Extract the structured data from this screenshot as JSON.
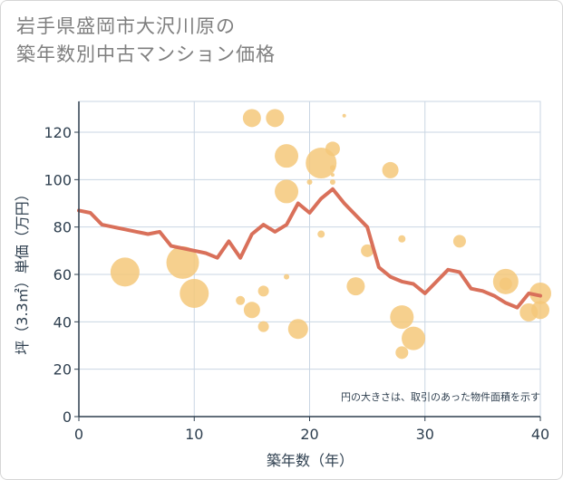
{
  "title_lines": [
    "岩手県盛岡市大沢川原の",
    "築年数別中古マンション価格"
  ],
  "colors": {
    "bubble": "#f5c87a",
    "line": "#d9705a",
    "grid": "#c9d6e3",
    "text": "#2e3f4f"
  },
  "chart_data": {
    "type": "scatter",
    "title": "岩手県盛岡市大沢川原の築年数別中古マンション価格",
    "xlabel": "築年数（年）",
    "ylabel": "坪（3.3㎡）単価（万円）",
    "xlim": [
      0,
      40
    ],
    "ylim": [
      0,
      133
    ],
    "xticks": [
      0,
      10,
      20,
      30,
      40
    ],
    "yticks": [
      0,
      20,
      40,
      60,
      80,
      100,
      120
    ],
    "grid": true,
    "note": "円の大きさは、取引のあった物件面積を示す",
    "bubbles": [
      {
        "x": 4,
        "y": 61,
        "size": 16
      },
      {
        "x": 9,
        "y": 65,
        "size": 18
      },
      {
        "x": 10,
        "y": 52,
        "size": 16
      },
      {
        "x": 14,
        "y": 49,
        "size": 5
      },
      {
        "x": 15,
        "y": 45,
        "size": 9
      },
      {
        "x": 15,
        "y": 126,
        "size": 10
      },
      {
        "x": 16,
        "y": 53,
        "size": 6
      },
      {
        "x": 16,
        "y": 38,
        "size": 6
      },
      {
        "x": 17,
        "y": 126,
        "size": 10
      },
      {
        "x": 18,
        "y": 110,
        "size": 13
      },
      {
        "x": 18,
        "y": 95,
        "size": 13
      },
      {
        "x": 18,
        "y": 59,
        "size": 3
      },
      {
        "x": 19,
        "y": 37,
        "size": 11
      },
      {
        "x": 20,
        "y": 99,
        "size": 3
      },
      {
        "x": 21,
        "y": 107,
        "size": 17
      },
      {
        "x": 21,
        "y": 77,
        "size": 4
      },
      {
        "x": 22,
        "y": 113,
        "size": 8
      },
      {
        "x": 22,
        "y": 105,
        "size": 3
      },
      {
        "x": 22,
        "y": 102,
        "size": 2
      },
      {
        "x": 22,
        "y": 99,
        "size": 3
      },
      {
        "x": 23,
        "y": 127,
        "size": 2
      },
      {
        "x": 24,
        "y": 55,
        "size": 10
      },
      {
        "x": 25,
        "y": 70,
        "size": 7
      },
      {
        "x": 27,
        "y": 104,
        "size": 9
      },
      {
        "x": 28,
        "y": 75,
        "size": 4
      },
      {
        "x": 28,
        "y": 42,
        "size": 13
      },
      {
        "x": 28,
        "y": 27,
        "size": 7
      },
      {
        "x": 29,
        "y": 33,
        "size": 13
      },
      {
        "x": 33,
        "y": 74,
        "size": 7
      },
      {
        "x": 37,
        "y": 57,
        "size": 14
      },
      {
        "x": 37,
        "y": 56,
        "size": 7
      },
      {
        "x": 39,
        "y": 44,
        "size": 10
      },
      {
        "x": 40,
        "y": 52,
        "size": 12
      },
      {
        "x": 40,
        "y": 45,
        "size": 10
      }
    ],
    "trend": {
      "x": [
        0,
        1,
        2,
        3,
        4,
        5,
        6,
        7,
        8,
        9,
        10,
        11,
        12,
        13,
        14,
        15,
        16,
        17,
        18,
        19,
        20,
        21,
        22,
        23,
        24,
        25,
        26,
        27,
        28,
        29,
        30,
        31,
        32,
        33,
        34,
        35,
        36,
        37,
        38,
        39,
        40
      ],
      "y": [
        87,
        86,
        81,
        80,
        79,
        78,
        77,
        78,
        72,
        71,
        70,
        69,
        67,
        74,
        67,
        77,
        81,
        78,
        81,
        90,
        86,
        92,
        96,
        90,
        85,
        80,
        63,
        59,
        57,
        56,
        52,
        57,
        62,
        61,
        54,
        53,
        51,
        48,
        46,
        52,
        51
      ]
    }
  }
}
